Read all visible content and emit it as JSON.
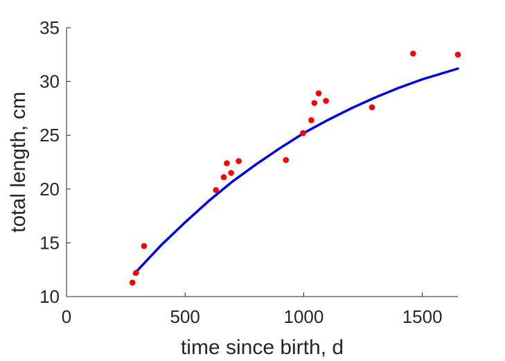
{
  "chart_data": {
    "type": "scatter",
    "xlabel": "time since birth, d",
    "ylabel": "total length, cm",
    "xlim": [
      0,
      1650
    ],
    "ylim": [
      10,
      35
    ],
    "xticks": [
      0,
      500,
      1000,
      1500
    ],
    "yticks": [
      10,
      15,
      20,
      25,
      30,
      35
    ],
    "grid": false,
    "colors": {
      "points": "#ff0000",
      "fit": "#0000ee",
      "axis": "#262626"
    },
    "points": [
      {
        "x": 278,
        "y": 11.3
      },
      {
        "x": 293,
        "y": 12.2
      },
      {
        "x": 327,
        "y": 14.7
      },
      {
        "x": 630,
        "y": 19.9
      },
      {
        "x": 663,
        "y": 21.1
      },
      {
        "x": 676,
        "y": 22.4
      },
      {
        "x": 694,
        "y": 21.5
      },
      {
        "x": 726,
        "y": 22.6
      },
      {
        "x": 925,
        "y": 22.7
      },
      {
        "x": 997,
        "y": 25.2
      },
      {
        "x": 1032,
        "y": 26.4
      },
      {
        "x": 1045,
        "y": 28.0
      },
      {
        "x": 1063,
        "y": 28.9
      },
      {
        "x": 1094,
        "y": 28.2
      },
      {
        "x": 1288,
        "y": 27.6
      },
      {
        "x": 1461,
        "y": 32.6
      },
      {
        "x": 1650,
        "y": 32.5
      }
    ],
    "fit_curve": [
      {
        "x": 285,
        "y": 12.1
      },
      {
        "x": 400,
        "y": 14.8
      },
      {
        "x": 500,
        "y": 16.9
      },
      {
        "x": 600,
        "y": 18.9
      },
      {
        "x": 700,
        "y": 20.7
      },
      {
        "x": 800,
        "y": 22.3
      },
      {
        "x": 900,
        "y": 23.8
      },
      {
        "x": 1000,
        "y": 25.2
      },
      {
        "x": 1100,
        "y": 26.4
      },
      {
        "x": 1200,
        "y": 27.5
      },
      {
        "x": 1300,
        "y": 28.5
      },
      {
        "x": 1400,
        "y": 29.4
      },
      {
        "x": 1500,
        "y": 30.2
      },
      {
        "x": 1650,
        "y": 31.2
      }
    ]
  }
}
